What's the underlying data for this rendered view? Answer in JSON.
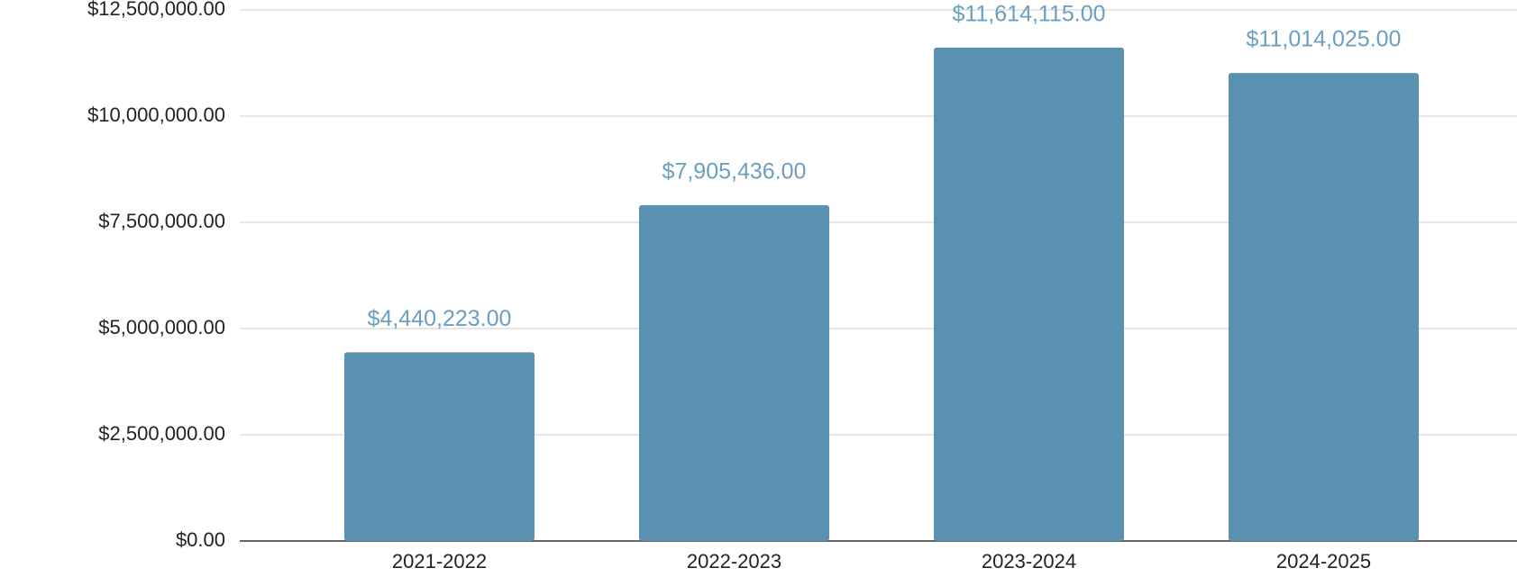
{
  "chart_data": {
    "type": "bar",
    "categories": [
      "2021-2022",
      "2022-2023",
      "2023-2024",
      "2024-2025"
    ],
    "values": [
      4440223,
      7905436,
      11614115,
      11014025
    ],
    "value_labels": [
      "$4,440,223.00",
      "$7,905,436.00",
      "$11,614,115.00",
      "$11,014,025.00"
    ],
    "color": "#5a91b0",
    "ylim": [
      0,
      12500000
    ],
    "yticks": [
      {
        "value": 0,
        "label": "$0.00"
      },
      {
        "value": 2500000,
        "label": "$2,500,000.00"
      },
      {
        "value": 5000000,
        "label": "$5,000,000.00"
      },
      {
        "value": 7500000,
        "label": "$7,500,000.00"
      },
      {
        "value": 10000000,
        "label": "$10,000,000.00"
      },
      {
        "value": 12500000,
        "label": "$12,500,000.00"
      }
    ],
    "grid": true
  }
}
